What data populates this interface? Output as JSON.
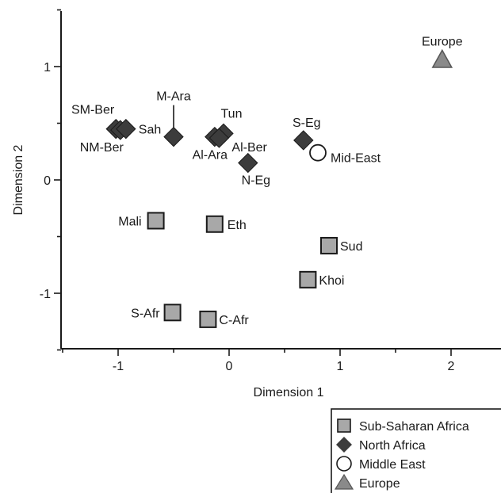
{
  "chart_data": {
    "type": "scatter",
    "xlabel": "Dimension 1",
    "ylabel": "Dimension 2",
    "xlim": [
      -1.5,
      2.45
    ],
    "ylim": [
      -1.5,
      1.5
    ],
    "x_ticks": [
      "-1",
      "0",
      "1",
      "2"
    ],
    "x_tick_values": [
      -1,
      0,
      1,
      2
    ],
    "y_ticks": [
      "1",
      "0",
      "-1"
    ],
    "y_tick_values": [
      1,
      0,
      -1
    ],
    "grid": false,
    "legend_position": "bottom-right",
    "series": [
      {
        "name": "Sub-Saharan Africa",
        "marker": "square",
        "color": "#a8a8a8",
        "points": [
          {
            "label": "Mali",
            "x": -0.66,
            "y": -0.36
          },
          {
            "label": "Eth",
            "x": -0.13,
            "y": -0.39
          },
          {
            "label": "Sud",
            "x": 0.9,
            "y": -0.58
          },
          {
            "label": "Khoi",
            "x": 0.71,
            "y": -0.88
          },
          {
            "label": "S-Afr",
            "x": -0.51,
            "y": -1.17
          },
          {
            "label": "C-Afr",
            "x": -0.19,
            "y": -1.23
          }
        ]
      },
      {
        "name": "North Africa",
        "marker": "diamond",
        "color": "#3c3c3c",
        "points": [
          {
            "label": "SM-Ber",
            "x": -1.02,
            "y": 0.45
          },
          {
            "label": "NM-Ber",
            "x": -0.98,
            "y": 0.44
          },
          {
            "label": "Sah",
            "x": -0.93,
            "y": 0.45
          },
          {
            "label": "M-Ara",
            "x": -0.5,
            "y": 0.38
          },
          {
            "label": "Al-Ara",
            "x": -0.13,
            "y": 0.38
          },
          {
            "label": "Tun",
            "x": -0.05,
            "y": 0.41
          },
          {
            "label": "Al-Ber",
            "x": -0.09,
            "y": 0.37
          },
          {
            "label": "N-Eg",
            "x": 0.17,
            "y": 0.15
          },
          {
            "label": "S-Eg",
            "x": 0.67,
            "y": 0.35
          }
        ]
      },
      {
        "name": "Middle East",
        "marker": "circle",
        "color": "#ffffff",
        "points": [
          {
            "label": "Mid-East",
            "x": 0.8,
            "y": 0.24
          }
        ]
      },
      {
        "name": "Europe",
        "marker": "triangle",
        "color": "#8a8a8a",
        "points": [
          {
            "label": "Europe",
            "x": 1.92,
            "y": 1.06
          }
        ]
      }
    ]
  }
}
